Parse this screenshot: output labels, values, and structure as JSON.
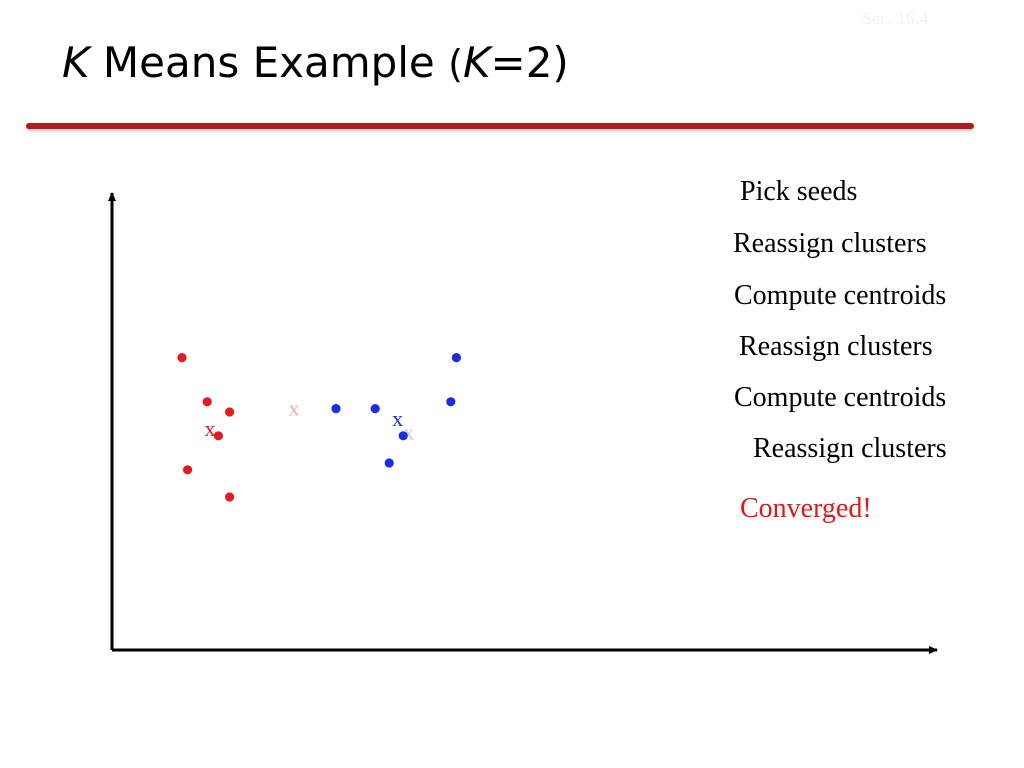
{
  "slide": {
    "section_label": "Sec. 16.4",
    "title": {
      "k": "K",
      "main": " Means Example ",
      "open": "(",
      "k2": "K",
      "rest": "=2)"
    }
  },
  "steps": [
    "Pick seeds",
    "Reassign clusters",
    "Compute centroids",
    "Reassign clusters",
    "Compute centroids",
    "Reassign clusters"
  ],
  "final_status": "Converged!",
  "diagram": {
    "colors": {
      "cluster_a": "#e41a1c",
      "cluster_b": "#1a2de0",
      "ghost_a": "#f0b0a8",
      "ghost_b": "#c4cdea",
      "axis": "#000000",
      "title_rule": "#b01b20",
      "converged": "#e01818"
    },
    "cluster_a": {
      "points": [
        [
          2.5,
          8.6
        ],
        [
          3.4,
          7.3
        ],
        [
          4.2,
          7.0
        ],
        [
          3.8,
          6.3
        ],
        [
          2.7,
          5.3
        ],
        [
          4.2,
          4.5
        ]
      ],
      "centroid": [
        3.5,
        6.5
      ],
      "centroid_marker": "x",
      "previous_centroid": [
        6.5,
        7.1
      ],
      "previous_centroid_marker": "x"
    },
    "cluster_b": {
      "points": [
        [
          8.0,
          7.1
        ],
        [
          9.4,
          7.1
        ],
        [
          10.4,
          6.3
        ],
        [
          9.9,
          5.5
        ],
        [
          12.1,
          7.3
        ],
        [
          12.3,
          8.6
        ]
      ],
      "centroid": [
        10.2,
        6.8
      ],
      "centroid_marker": "x",
      "previous_centroid": [
        10.6,
        6.4
      ],
      "previous_centroid_marker": "x"
    }
  }
}
